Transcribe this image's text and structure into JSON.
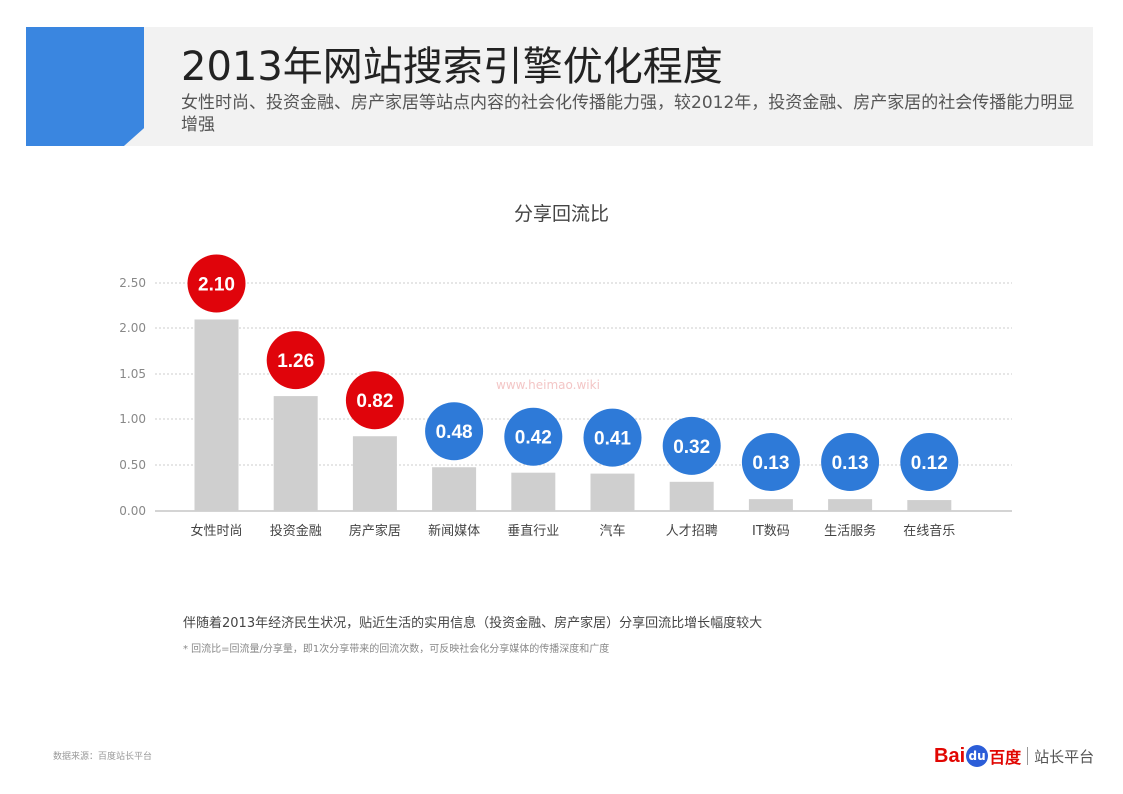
{
  "header": {
    "title": "2013年网站搜索引擎优化程度",
    "subtitle": "女性时尚、投资金融、房产家居等站点内容的社会化传播能力强，较2012年，投资金融、房产家居的社会传播能力明显增强",
    "accent_color": "#3a86e0"
  },
  "chart_data": {
    "type": "bar",
    "title": "分享回流比",
    "categories": [
      "女性时尚",
      "投资金融",
      "房产家居",
      "新闻媒体",
      "垂直行业",
      "汽车",
      "人才招聘",
      "IT数码",
      "生活服务",
      "在线音乐"
    ],
    "values": [
      2.1,
      1.26,
      0.82,
      0.48,
      0.42,
      0.41,
      0.32,
      0.13,
      0.13,
      0.12
    ],
    "value_labels": [
      "2.10",
      "1.26",
      "0.82",
      "0.48",
      "0.42",
      "0.41",
      "0.32",
      "0.13",
      "0.13",
      "0.12"
    ],
    "y_ticks": [
      "0.00",
      "0.50",
      "1.00",
      "1.05",
      "2.00",
      "2.50"
    ],
    "grid": true,
    "bar_color": "#cfcfcf",
    "highlight_color": "#e0040b",
    "normal_color": "#2e7ad8",
    "highlighted_count": 3
  },
  "notes": {
    "line1": "伴随着2013年经济民生状况，贴近生活的实用信息（投资金融、房产家居）分享回流比增长幅度较大",
    "line2": "* 回流比=回流量/分享量，即1次分享带来的回流次数，可反映社会化分享媒体的传播深度和广度"
  },
  "footer": {
    "source": "数据来源：百度站长平台",
    "logo_bai": "Bai",
    "logo_du": "du",
    "logo_cn": "百度",
    "logo_platform": "站长平台"
  },
  "watermark": "www.heimao.wiki"
}
